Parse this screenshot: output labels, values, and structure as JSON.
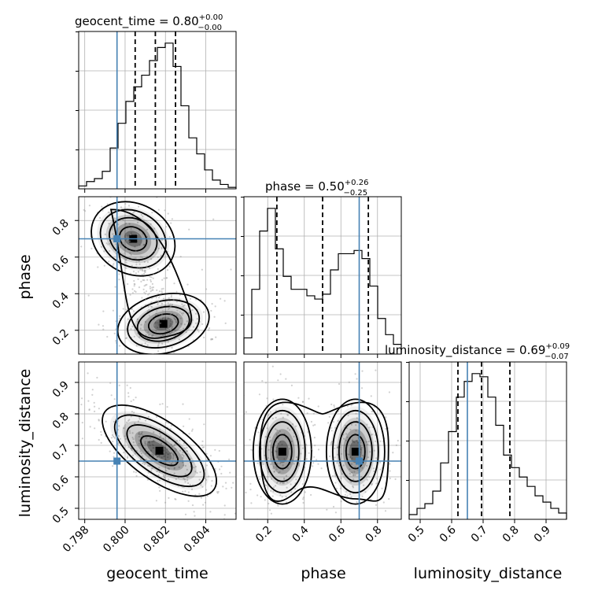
{
  "chart_data": {
    "type": "corner",
    "parameters": [
      "geocent_time",
      "phase",
      "luminosity_distance"
    ],
    "truths": {
      "geocent_time": 0.7996,
      "phase": 0.7,
      "luminosity_distance": 0.65
    },
    "colors": {
      "truth": "#4682b4",
      "hist": "#000000",
      "contour": "#000000",
      "scatter": "#9a9a9a"
    },
    "titles": [
      {
        "param": "geocent_time",
        "text": "geocent_time = 0.80",
        "plus": "+0.00",
        "minus": "−0.00"
      },
      {
        "param": "phase",
        "text": "phase = 0.50",
        "plus": "+0.26",
        "minus": "−0.25"
      },
      {
        "param": "luminosity_distance",
        "text": "luminosity_distance = 0.69",
        "plus": "+0.09",
        "minus": "−0.07"
      }
    ],
    "axes": {
      "geocent_time": {
        "label": "geocent_time",
        "range": [
          0.7977,
          0.8055
        ],
        "ticks": [
          0.798,
          0.8,
          0.802,
          0.804
        ],
        "tick_labels": [
          "0.798",
          "0.800",
          "0.802",
          "0.804"
        ]
      },
      "phase": {
        "label": "phase",
        "range": [
          0.07,
          0.93
        ],
        "ticks": [
          0.2,
          0.4,
          0.6,
          0.8
        ],
        "tick_labels": [
          "0.2",
          "0.4",
          "0.6",
          "0.8"
        ]
      },
      "luminosity_distance": {
        "label": "luminosity_distance",
        "range": [
          0.465,
          0.965
        ],
        "ticks": [
          0.5,
          0.6,
          0.7,
          0.8,
          0.9
        ],
        "tick_labels": [
          "0.5",
          "0.6",
          "0.7",
          "0.8",
          "0.9"
        ]
      }
    },
    "quantiles": {
      "geocent_time": [
        0.8005,
        0.8015,
        0.8025
      ],
      "phase": [
        0.25,
        0.5,
        0.75
      ],
      "luminosity_distance": [
        0.62,
        0.695,
        0.785
      ]
    },
    "histograms": {
      "geocent_time": {
        "edges_start": 0.7977,
        "bin_width": 0.00039,
        "counts": [
          2,
          5,
          7,
          12,
          28,
          45,
          60,
          70,
          78,
          88,
          97,
          100,
          84,
          57,
          35,
          24,
          13,
          6,
          3,
          1
        ]
      },
      "phase": {
        "edges_start": 0.07,
        "bin_width": 0.043,
        "counts": [
          10,
          40,
          76,
          90,
          65,
          48,
          40,
          40,
          36,
          34,
          37,
          52,
          62,
          62,
          64,
          59,
          42,
          22,
          12,
          6
        ]
      },
      "luminosity_distance": {
        "edges_start": 0.465,
        "bin_width": 0.025,
        "counts": [
          3,
          7,
          10,
          18,
          36,
          56,
          78,
          88,
          93,
          91,
          78,
          60,
          41,
          33,
          27,
          21,
          15,
          11,
          7,
          4
        ]
      }
    },
    "peaks_2d": {
      "phase_vs_geocent_time": [
        {
          "x": 0.8019,
          "y": 0.235
        },
        {
          "x": 0.8004,
          "y": 0.7
        }
      ],
      "luminosity_distance_vs_geocent_time": [
        {
          "x": 0.8017,
          "y": 0.683
        }
      ],
      "luminosity_distance_vs_phase": [
        {
          "x": 0.28,
          "y": 0.68
        },
        {
          "x": 0.68,
          "y": 0.68
        }
      ]
    }
  }
}
